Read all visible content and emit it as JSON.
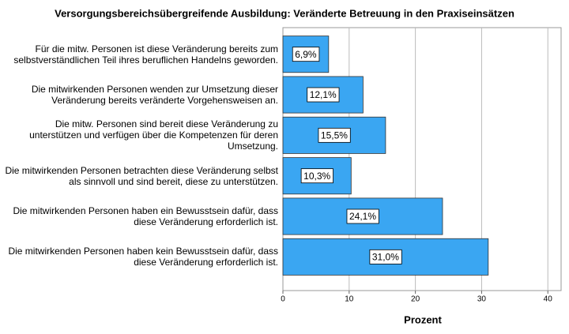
{
  "chart_data": {
    "type": "hbar",
    "title": "Versorgungsbereichsübergreifende Ausbildung: Veränderte Betreuung in den Praxiseinsätzen",
    "x_label": "Prozent",
    "categories": [
      "Für die mitw. Personen ist diese Veränderung bereits zum selbstverständlichen Teil ihres beruflichen Handelns geworden.",
      "Die mitwirkenden Personen wenden zur Umsetzung dieser Veränderung bereits veränderte Vorgehensweisen an.",
      "Die mitw. Personen sind bereit diese Veränderung zu unterstützen und verfügen über die Kompetenzen für deren Umsetzung.",
      "Die mitwirkenden Personen betrachten diese Veränderung selbst als sinnvoll und sind bereit, diese zu unterstützen.",
      "Die mitwirkenden Personen haben ein Bewusstsein dafür, dass diese Veränderung erforderlich ist.",
      "Die mitwirkenden Personen haben kein Bewusstsein dafür, dass diese Veränderung erforderlich ist."
    ],
    "values": [
      6.9,
      12.1,
      15.5,
      10.3,
      24.1,
      31.0
    ],
    "value_labels": [
      "6,9%",
      "12,1%",
      "15,5%",
      "10,3%",
      "24,1%",
      "31,0%"
    ],
    "color": "#3aa6f2",
    "xlim": [
      0,
      42
    ],
    "xticks": [
      0,
      10,
      20,
      30,
      40
    ],
    "grid": true
  }
}
